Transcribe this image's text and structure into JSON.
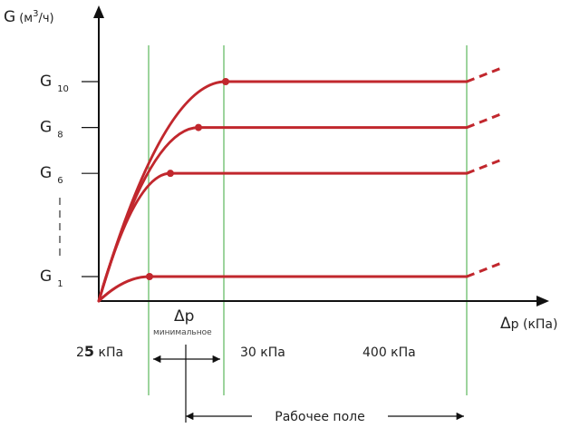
{
  "chart_data": {
    "type": "line",
    "y_axis": {
      "label_main": "G",
      "label_unit_prefix": "(м",
      "label_unit_sup": "3",
      "label_unit_suffix": "/ч)"
    },
    "x_axis": {
      "label_delta": "Δ",
      "label_rest": "p (кПа)"
    },
    "series": [
      {
        "name_main": "G",
        "name_sub": "10",
        "plateau": 1.0
      },
      {
        "name_main": "G",
        "name_sub": "8",
        "plateau": 0.8
      },
      {
        "name_main": "G",
        "name_sub": "6",
        "plateau": 0.6
      },
      {
        "name_main": "G",
        "name_sub": "1",
        "plateau": 0.15
      }
    ],
    "vertical_lines": [
      {
        "tick_prefix": "2",
        "tick_bold": "5",
        "tick_suffix": " кПа"
      },
      {
        "tick_prefix": "30 кПа",
        "tick_bold": "",
        "tick_suffix": ""
      },
      {
        "tick_prefix": "400 кПа",
        "tick_bold": "",
        "tick_suffix": ""
      }
    ],
    "annotations": {
      "dp_symbol": "Δ",
      "dp_letter": "p",
      "dp_min_label": "минимальное",
      "working_field_label": "Рабочее поле"
    },
    "colors": {
      "curve": "#c1272d",
      "guide": "#5cb85c",
      "axis": "#111111"
    }
  }
}
